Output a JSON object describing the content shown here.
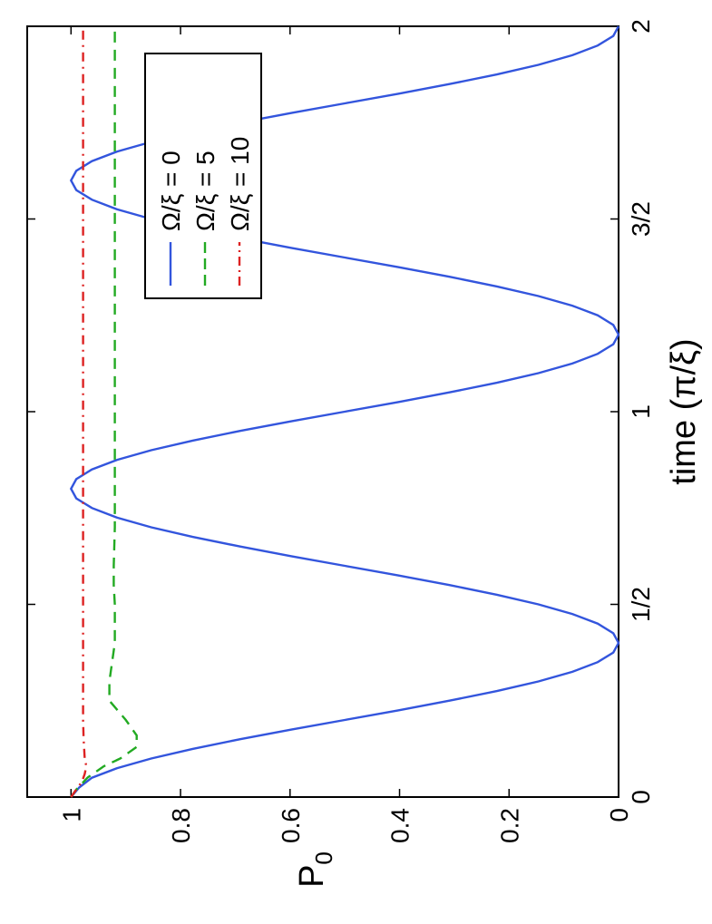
{
  "chart_data": {
    "type": "line",
    "title": "",
    "xlabel": "time (π/ξ)",
    "ylabel": "P",
    "ylabel_sub": "0",
    "xlim": [
      0,
      2
    ],
    "ylim": [
      0,
      1.08
    ],
    "x_ticks": [
      {
        "value": 0,
        "label": "0"
      },
      {
        "value": 0.5,
        "label": "1/2"
      },
      {
        "value": 1,
        "label": "1"
      },
      {
        "value": 1.5,
        "label": "3/2"
      },
      {
        "value": 2,
        "label": "2"
      }
    ],
    "y_ticks": [
      {
        "value": 0,
        "label": "0"
      },
      {
        "value": 0.2,
        "label": "0.2"
      },
      {
        "value": 0.4,
        "label": "0.4"
      },
      {
        "value": 0.6,
        "label": "0.6"
      },
      {
        "value": 0.8,
        "label": "0.8"
      },
      {
        "value": 1,
        "label": "1"
      }
    ],
    "grid": false,
    "legend_position": "top-right",
    "series": [
      {
        "name": "Ω/ξ = 0",
        "color": "#3355dd",
        "style": "solid",
        "x": [
          0,
          0.025,
          0.05,
          0.075,
          0.1,
          0.125,
          0.15,
          0.175,
          0.2,
          0.225,
          0.25,
          0.275,
          0.3,
          0.325,
          0.35,
          0.375,
          0.4,
          0.425,
          0.45,
          0.475,
          0.5,
          0.525,
          0.55,
          0.575,
          0.6,
          0.625,
          0.65,
          0.675,
          0.7,
          0.725,
          0.75,
          0.775,
          0.8,
          0.825,
          0.85,
          0.875,
          0.9,
          0.925,
          0.95,
          0.975,
          1,
          1.025,
          1.05,
          1.075,
          1.1,
          1.125,
          1.15,
          1.175,
          1.2,
          1.225,
          1.25,
          1.275,
          1.3,
          1.325,
          1.35,
          1.375,
          1.4,
          1.425,
          1.45,
          1.475,
          1.5,
          1.525,
          1.55,
          1.575,
          1.6,
          1.625,
          1.65,
          1.675,
          1.7,
          1.725,
          1.75,
          1.775,
          1.8,
          1.825,
          1.85,
          1.875,
          1.9,
          1.925,
          1.95,
          1.975,
          2
        ],
        "y": [
          1,
          0.985,
          0.9619,
          0.9156,
          0.8536,
          0.7778,
          0.691,
          0.5975,
          0.5,
          0.4025,
          0.309,
          0.2222,
          0.1464,
          0.0844,
          0.0381,
          0.0096,
          0,
          0.0096,
          0.0381,
          0.0844,
          0.1464,
          0.2222,
          0.309,
          0.4025,
          0.5,
          0.5975,
          0.691,
          0.7778,
          0.8536,
          0.9156,
          0.9619,
          0.9904,
          1,
          0.9904,
          0.9619,
          0.9156,
          0.8536,
          0.7778,
          0.691,
          0.5975,
          0.5,
          0.4025,
          0.309,
          0.2222,
          0.1464,
          0.0844,
          0.0381,
          0.0096,
          0,
          0.0096,
          0.0381,
          0.0844,
          0.1464,
          0.2222,
          0.309,
          0.4025,
          0.5,
          0.5975,
          0.691,
          0.7778,
          0.8536,
          0.9156,
          0.9619,
          0.9904,
          1,
          0.9904,
          0.9619,
          0.9156,
          0.8536,
          0.7778,
          0.691,
          0.5975,
          0.5,
          0.4025,
          0.309,
          0.2222,
          0.1464,
          0.0844,
          0.0381,
          0.0096,
          0
        ]
      },
      {
        "name": "Ω/ξ = 5",
        "color": "#22aa22",
        "style": "dashed",
        "x": [
          0,
          0.02,
          0.05,
          0.08,
          0.1,
          0.13,
          0.16,
          0.2,
          0.25,
          0.3,
          0.35,
          0.4,
          0.45,
          0.5,
          0.55,
          0.6,
          0.7,
          0.8,
          0.9,
          1,
          1.2,
          1.4,
          1.6,
          1.8,
          2
        ],
        "y": [
          1,
          0.99,
          0.97,
          0.94,
          0.91,
          0.88,
          0.88,
          0.9,
          0.93,
          0.93,
          0.925,
          0.92,
          0.92,
          0.92,
          0.922,
          0.922,
          0.92,
          0.92,
          0.92,
          0.92,
          0.92,
          0.92,
          0.92,
          0.92,
          0.92
        ]
      },
      {
        "name": "Ω/ξ = 10",
        "color": "#dd2222",
        "style": "dashdot",
        "x": [
          0,
          0.02,
          0.04,
          0.06,
          0.08,
          0.1,
          0.15,
          0.2,
          0.3,
          0.5,
          0.75,
          1,
          1.25,
          1.5,
          1.75,
          2
        ],
        "y": [
          1,
          0.99,
          0.98,
          0.975,
          0.972,
          0.975,
          0.977,
          0.978,
          0.978,
          0.978,
          0.978,
          0.978,
          0.978,
          0.978,
          0.978,
          0.978
        ]
      }
    ]
  }
}
